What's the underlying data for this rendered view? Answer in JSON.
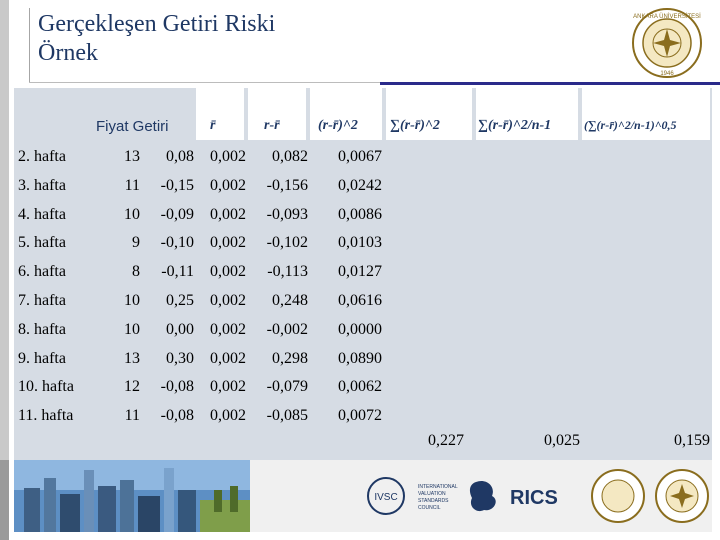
{
  "title": {
    "line1": "Gerçekleşen Getiri Riski",
    "line2": "Örnek"
  },
  "table": {
    "header_prefix": "Fiyat  Getiri",
    "col_headers": [
      "r̄",
      "r-r̄",
      "(r-r̄)^2",
      "∑(r-r̄)^2",
      "∑(r-r̄)^2/n-1",
      "(∑(r-r̄)^2/n-1)^0,5"
    ],
    "rows": [
      {
        "week": "2. hafta",
        "price": "13",
        "ret": "0,08",
        "mean": "0,002",
        "dev": "0,082",
        "sq": "0,0067"
      },
      {
        "week": "3. hafta",
        "price": "11",
        "ret": "-0,15",
        "mean": "0,002",
        "dev": "-0,156",
        "sq": "0,0242"
      },
      {
        "week": "4. hafta",
        "price": "10",
        "ret": "-0,09",
        "mean": "0,002",
        "dev": "-0,093",
        "sq": "0,0086"
      },
      {
        "week": "5. hafta",
        "price": "9",
        "ret": "-0,10",
        "mean": "0,002",
        "dev": "-0,102",
        "sq": "0,0103"
      },
      {
        "week": "6. hafta",
        "price": "8",
        "ret": "-0,11",
        "mean": "0,002",
        "dev": "-0,113",
        "sq": "0,0127"
      },
      {
        "week": "7. hafta",
        "price": "10",
        "ret": "0,25",
        "mean": "0,002",
        "dev": "0,248",
        "sq": "0,0616"
      },
      {
        "week": "8. hafta",
        "price": "10",
        "ret": "0,00",
        "mean": "0,002",
        "dev": "-0,002",
        "sq": "0,0000"
      },
      {
        "week": "9. hafta",
        "price": "13",
        "ret": "0,30",
        "mean": "0,002",
        "dev": "0,298",
        "sq": "0,0890"
      },
      {
        "week": "10. hafta",
        "price": "12",
        "ret": "-0,08",
        "mean": "0,002",
        "dev": "-0,079",
        "sq": "0,0062"
      },
      {
        "week": "11. hafta",
        "price": "11",
        "ret": "-0,08",
        "mean": "0,002",
        "dev": "-0,085",
        "sq": "0,0072"
      }
    ],
    "totals": {
      "sum_sq": "0,227",
      "variance": "0,025",
      "std_dev": "0,159"
    }
  },
  "logos": {
    "top_university": "ANKARA ÜNİVERSİTESİ 1946",
    "ivsc": "IVSC",
    "ivsc_text": "INTERNATIONAL VALUATION STANDARDS COUNCIL",
    "rics": "RICS"
  },
  "colors": {
    "title": "#1f3864",
    "table_bg": "#d6dce4",
    "accent_blue": "#2a2a8a"
  }
}
